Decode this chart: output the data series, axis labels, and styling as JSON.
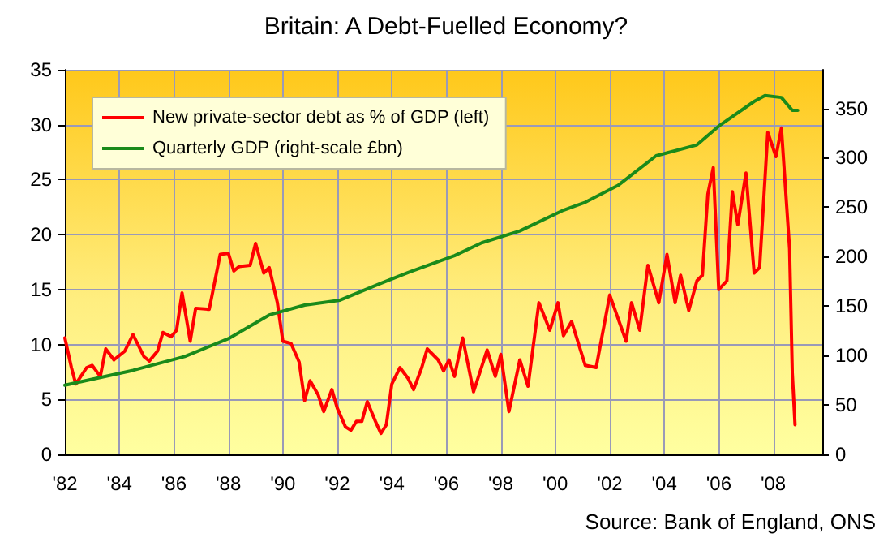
{
  "chart_data": {
    "type": "line",
    "title": "Britain: A Debt-Fuelled Economy?",
    "annotations": [
      "Source: Bank of England, ONS"
    ],
    "xlim": [
      1982,
      2009.8
    ],
    "xticks": [
      {
        "value": 1982,
        "label": "'82"
      },
      {
        "value": 1984,
        "label": "'84"
      },
      {
        "value": 1986,
        "label": "'86"
      },
      {
        "value": 1988,
        "label": "'88"
      },
      {
        "value": 1990,
        "label": "'90"
      },
      {
        "value": 1992,
        "label": "'92"
      },
      {
        "value": 1994,
        "label": "'94"
      },
      {
        "value": 1996,
        "label": "'96"
      },
      {
        "value": 1998,
        "label": "'98"
      },
      {
        "value": 2000,
        "label": "'00"
      },
      {
        "value": 2002,
        "label": "'02"
      },
      {
        "value": 2004,
        "label": "'04"
      },
      {
        "value": 2006,
        "label": "'06"
      },
      {
        "value": 2008,
        "label": "'08"
      }
    ],
    "ylim": [
      0,
      35
    ],
    "yticks": [
      0,
      5,
      10,
      15,
      20,
      25,
      30,
      35
    ],
    "y2lim": [
      0,
      389
    ],
    "y2ticks": [
      0,
      50,
      100,
      150,
      200,
      250,
      300,
      350
    ],
    "grid": true,
    "legend": "top left",
    "marker": "none",
    "line_style": "solid",
    "series": [
      {
        "name": "New private-sector debt as % of GDP (left)",
        "color": "#ff0000",
        "x": [
          1982.0,
          1982.24,
          1982.4,
          1982.8,
          1983.0,
          1983.3,
          1983.5,
          1983.8,
          1984.2,
          1984.5,
          1984.9,
          1985.1,
          1985.4,
          1985.6,
          1985.9,
          1986.1,
          1986.3,
          1986.6,
          1986.8,
          1987.3,
          1987.7,
          1988.0,
          1988.2,
          1988.4,
          1988.8,
          1989.0,
          1989.3,
          1989.5,
          1989.8,
          1990.0,
          1990.3,
          1990.6,
          1990.8,
          1991.0,
          1991.3,
          1991.5,
          1991.8,
          1992.0,
          1992.3,
          1992.5,
          1992.7,
          1992.9,
          1993.1,
          1993.4,
          1993.6,
          1993.8,
          1994.0,
          1994.3,
          1994.6,
          1994.8,
          1995.1,
          1995.3,
          1995.7,
          1995.9,
          1996.1,
          1996.3,
          1996.6,
          1997.0,
          1997.5,
          1997.8,
          1998.0,
          1998.3,
          1998.7,
          1999.0,
          1999.4,
          1999.8,
          2000.1,
          2000.3,
          2000.6,
          2001.1,
          2001.5,
          2002.0,
          2002.6,
          2002.8,
          2003.1,
          2003.4,
          2003.8,
          2004.1,
          2004.4,
          2004.6,
          2004.9,
          2005.2,
          2005.4,
          2005.6,
          2005.8,
          2006.0,
          2006.3,
          2006.5,
          2006.7,
          2007.0,
          2007.3,
          2007.5,
          2007.8,
          2008.1,
          2008.3,
          2008.6,
          2008.7,
          2008.8
        ],
        "values": [
          10.6,
          7.9,
          6.4,
          7.9,
          8.1,
          7.1,
          9.6,
          8.6,
          9.4,
          10.9,
          8.9,
          8.5,
          9.4,
          11.1,
          10.7,
          11.3,
          14.7,
          10.3,
          13.3,
          13.2,
          18.2,
          18.3,
          16.7,
          17.1,
          17.2,
          19.2,
          16.5,
          17.0,
          13.8,
          10.3,
          10.1,
          8.4,
          4.9,
          6.7,
          5.4,
          3.9,
          5.9,
          4.2,
          2.5,
          2.2,
          3.0,
          3.0,
          4.8,
          3.0,
          1.9,
          2.7,
          6.4,
          7.9,
          6.9,
          5.9,
          7.9,
          9.6,
          8.6,
          7.6,
          8.6,
          7.1,
          10.6,
          5.7,
          9.5,
          7.1,
          9.1,
          3.9,
          8.6,
          6.2,
          13.8,
          11.3,
          13.8,
          10.8,
          12.1,
          8.1,
          7.9,
          14.5,
          10.3,
          13.8,
          11.3,
          17.2,
          13.8,
          18.2,
          13.8,
          16.3,
          13.1,
          15.8,
          16.3,
          23.7,
          26.1,
          15.0,
          15.8,
          23.9,
          20.9,
          25.6,
          16.5,
          17.0,
          29.3,
          27.1,
          29.7,
          18.7,
          7.4,
          2.7
        ]
      },
      {
        "name": "Quarterly GDP (right-scale £bn)",
        "color": "#1a8a1a",
        "axis": "y2",
        "x": [
          1982.0,
          1984.5,
          1986.4,
          1988.0,
          1989.5,
          1990.8,
          1992.1,
          1993.6,
          1994.6,
          1996.3,
          1997.3,
          1998.7,
          2000.3,
          2001.1,
          2002.3,
          2003.7,
          2005.2,
          2006.0,
          2007.3,
          2007.7,
          2008.3,
          2008.7,
          2008.9
        ],
        "values": [
          70,
          85,
          99,
          117,
          141,
          151,
          156,
          173,
          184,
          201,
          214,
          226,
          247,
          255,
          272,
          302,
          313,
          332,
          357,
          363,
          361,
          348,
          348
        ]
      }
    ]
  }
}
